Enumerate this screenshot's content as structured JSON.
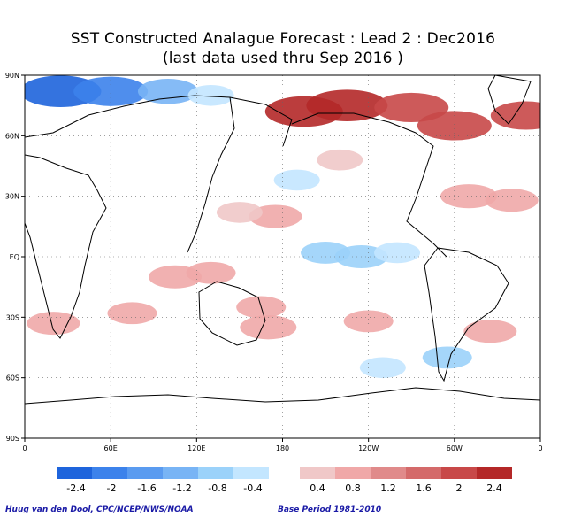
{
  "title_line1": "SST Constructed Analague Forecast : Lead 2 : Dec2016",
  "title_line2": "(last data used thru Sep 2016 )",
  "map": {
    "lat_labels": [
      "90N",
      "60N",
      "30N",
      "EQ",
      "30S",
      "60S",
      "90S"
    ],
    "lon_labels": [
      "0",
      "60E",
      "120E",
      "180",
      "120W",
      "60W",
      "0"
    ],
    "grid": "dotted",
    "neg_colors": [
      "#1e64dc",
      "#3c82eb",
      "#5a9bf0",
      "#78b4f5",
      "#9bd2fa",
      "#c3e6ff"
    ],
    "pos_colors": [
      "#f0c8c8",
      "#f0a8a8",
      "#e08a8a",
      "#d46a6a",
      "#c84848",
      "#b42828"
    ],
    "anomalies": [
      {
        "lon": 25,
        "lat": 82,
        "value": -2.6
      },
      {
        "lon": 60,
        "lat": 82,
        "value": -2.2
      },
      {
        "lon": 100,
        "lat": 82,
        "value": -1.4
      },
      {
        "lon": 130,
        "lat": 80,
        "value": -0.6
      },
      {
        "lon": 195,
        "lat": 72,
        "value": 2.4
      },
      {
        "lon": 225,
        "lat": 75,
        "value": 2.6
      },
      {
        "lon": 270,
        "lat": 74,
        "value": 2.2
      },
      {
        "lon": 300,
        "lat": 65,
        "value": 2.2
      },
      {
        "lon": 350,
        "lat": 70,
        "value": 2.0
      },
      {
        "lon": 190,
        "lat": 38,
        "value": -0.6
      },
      {
        "lon": 220,
        "lat": 48,
        "value": 0.6
      },
      {
        "lon": 175,
        "lat": 20,
        "value": 1.0
      },
      {
        "lon": 150,
        "lat": 22,
        "value": 0.6
      },
      {
        "lon": 310,
        "lat": 30,
        "value": 1.2
      },
      {
        "lon": 340,
        "lat": 28,
        "value": 1.0
      },
      {
        "lon": 210,
        "lat": 2,
        "value": -0.8
      },
      {
        "lon": 235,
        "lat": 0,
        "value": -1.0
      },
      {
        "lon": 260,
        "lat": 2,
        "value": -0.6
      },
      {
        "lon": 105,
        "lat": -10,
        "value": 1.0
      },
      {
        "lon": 130,
        "lat": -8,
        "value": 0.8
      },
      {
        "lon": 165,
        "lat": -25,
        "value": 0.8
      },
      {
        "lon": 170,
        "lat": -35,
        "value": 1.2
      },
      {
        "lon": 75,
        "lat": -28,
        "value": 0.8
      },
      {
        "lon": 20,
        "lat": -33,
        "value": 1.0
      },
      {
        "lon": 240,
        "lat": -32,
        "value": 0.8
      },
      {
        "lon": 325,
        "lat": -37,
        "value": 1.0
      },
      {
        "lon": 295,
        "lat": -50,
        "value": -0.8
      },
      {
        "lon": 250,
        "lat": -55,
        "value": -0.6
      }
    ]
  },
  "colorbar": {
    "labels": [
      "-2.4",
      "-2",
      "-1.6",
      "-1.2",
      "-0.8",
      "-0.4",
      "0.4",
      "0.8",
      "1.2",
      "1.6",
      "2",
      "2.4"
    ]
  },
  "credit_left": "Huug van den Dool, CPC/NCEP/NWS/NOAA",
  "credit_right": "Base Period 1981-2010"
}
